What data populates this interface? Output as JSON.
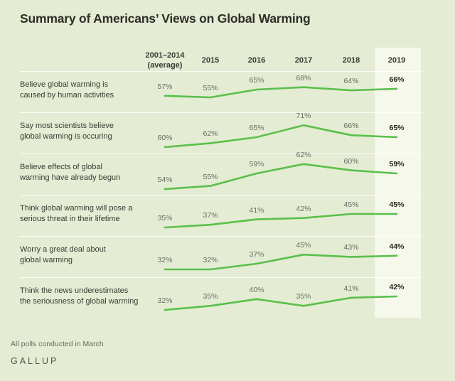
{
  "title": "Summary of Americans’ Views on Global Warming",
  "columns": [
    {
      "label": "2001–2014",
      "sublabel": "(average)"
    },
    {
      "label": "2015",
      "sublabel": ""
    },
    {
      "label": "2016",
      "sublabel": ""
    },
    {
      "label": "2017",
      "sublabel": ""
    },
    {
      "label": "2018",
      "sublabel": ""
    },
    {
      "label": "2019",
      "sublabel": ""
    }
  ],
  "footer": {
    "note": "All polls conducted in March",
    "brand": "GALLUP"
  },
  "colors": {
    "background": "#e4ecd3",
    "highlight_band": "#f6f8ec",
    "divider": "rgba(255,255,255,0.82)",
    "line": "#5abf4b",
    "title_text": "#2e2d28",
    "header_text": "#3a3a33",
    "row_label_text": "#3b3b33",
    "value_text": "#6c6c64",
    "final_value_text": "#23231f",
    "note_text": "#6b6b62",
    "brand_text": "#54544b"
  },
  "chart_data": {
    "type": "line",
    "unit": "%",
    "categories": [
      "2001–2014 (average)",
      "2015",
      "2016",
      "2017",
      "2018",
      "2019"
    ],
    "highlighted_category": "2019",
    "legend": "none",
    "grid": "row dividers only",
    "series": [
      {
        "name": "Believe global warming is caused by human activities",
        "name_lines": [
          "Believe global warming is",
          "caused by human activities"
        ],
        "values": [
          57,
          55,
          65,
          68,
          64,
          66
        ]
      },
      {
        "name": "Say most scientists believe global warming is occuring",
        "name_lines": [
          "Say most scientists believe",
          "global warming is occuring"
        ],
        "values": [
          60,
          62,
          65,
          71,
          66,
          65
        ]
      },
      {
        "name": "Believe effects of global warming have already begun",
        "name_lines": [
          "Believe effects of global",
          "warming have already begun"
        ],
        "values": [
          54,
          55,
          59,
          62,
          60,
          59
        ]
      },
      {
        "name": "Think global warming will pose a serious threat in their lifetime",
        "name_lines": [
          "Think global warming will pose a",
          "serious threat in their lifetime"
        ],
        "values": [
          35,
          37,
          41,
          42,
          45,
          45
        ]
      },
      {
        "name": "Worry a great deal about global warming",
        "name_lines": [
          "Worry a great deal about",
          "global warming"
        ],
        "values": [
          32,
          32,
          37,
          45,
          43,
          44
        ]
      },
      {
        "name": "Think the news underestimates the seriousness of global warming",
        "name_lines": [
          "Think the news underestimates",
          "the seriousness of global warming"
        ],
        "values": [
          32,
          35,
          40,
          35,
          41,
          42
        ]
      }
    ]
  }
}
